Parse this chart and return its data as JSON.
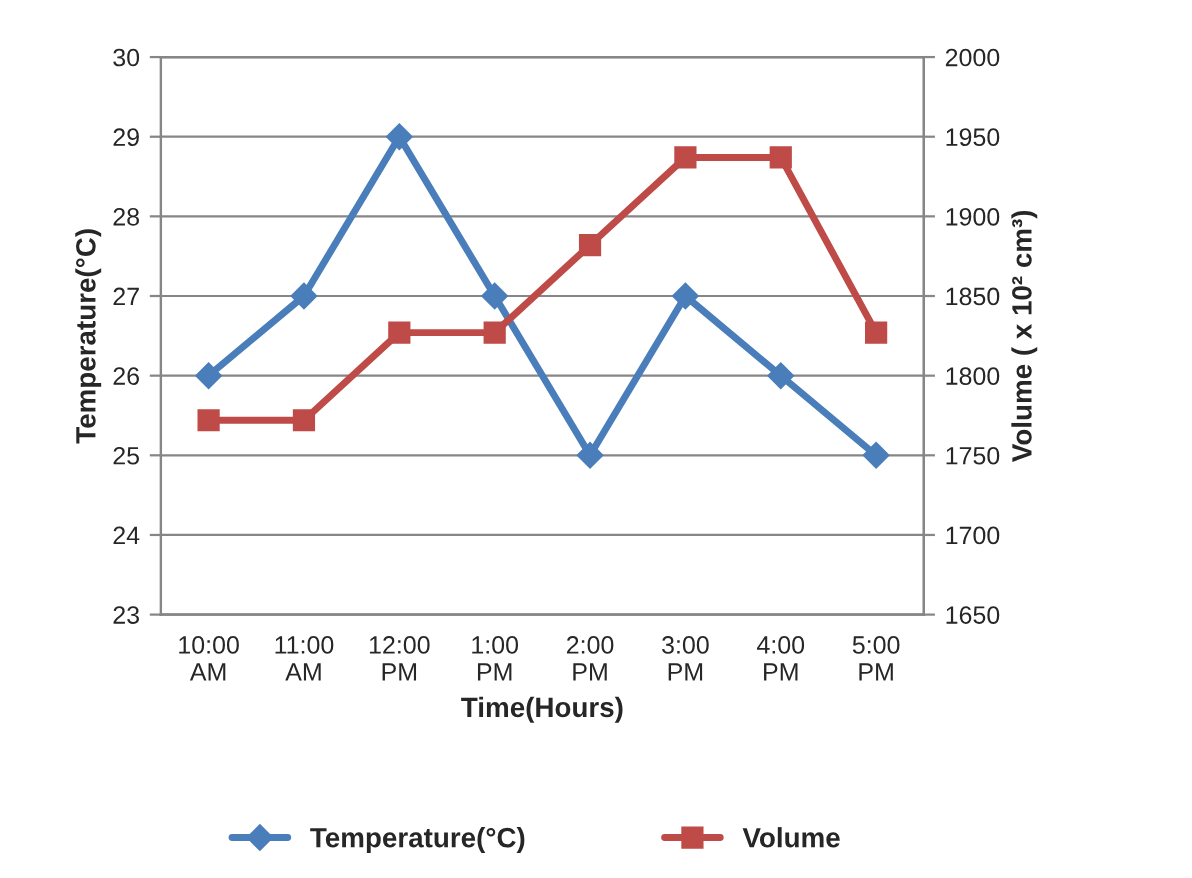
{
  "chart_data": {
    "type": "line",
    "xlabel": "Time(Hours)",
    "ylabel": "Temperature(°C)",
    "y2label": "Volume ( x 10² cm³)",
    "categories": [
      "10:00 AM",
      "11:00 AM",
      "12:00 PM",
      "1:00 PM",
      "2:00 PM",
      "3:00 PM",
      "4:00 PM",
      "5:00 PM"
    ],
    "series": [
      {
        "name": "Temperature(°C)",
        "color": "#4a7ebb",
        "marker": "diamond",
        "values": [
          26,
          27,
          29,
          27,
          25,
          27,
          26,
          25
        ]
      },
      {
        "name": "Volume",
        "color": "#be4b48",
        "marker": "square",
        "axis": "y2",
        "values": [
          1772,
          1772,
          1827,
          1827,
          1882,
          1937,
          1937,
          1827
        ]
      }
    ],
    "ylim": [
      23,
      30
    ],
    "yticks": [
      23,
      24,
      25,
      26,
      27,
      28,
      29,
      30
    ],
    "y2lim": [
      1650,
      2000
    ],
    "y2ticks": [
      1650,
      1700,
      1750,
      1800,
      1850,
      1900,
      1950,
      2000
    ],
    "grid": "y",
    "legend": "bottom"
  }
}
